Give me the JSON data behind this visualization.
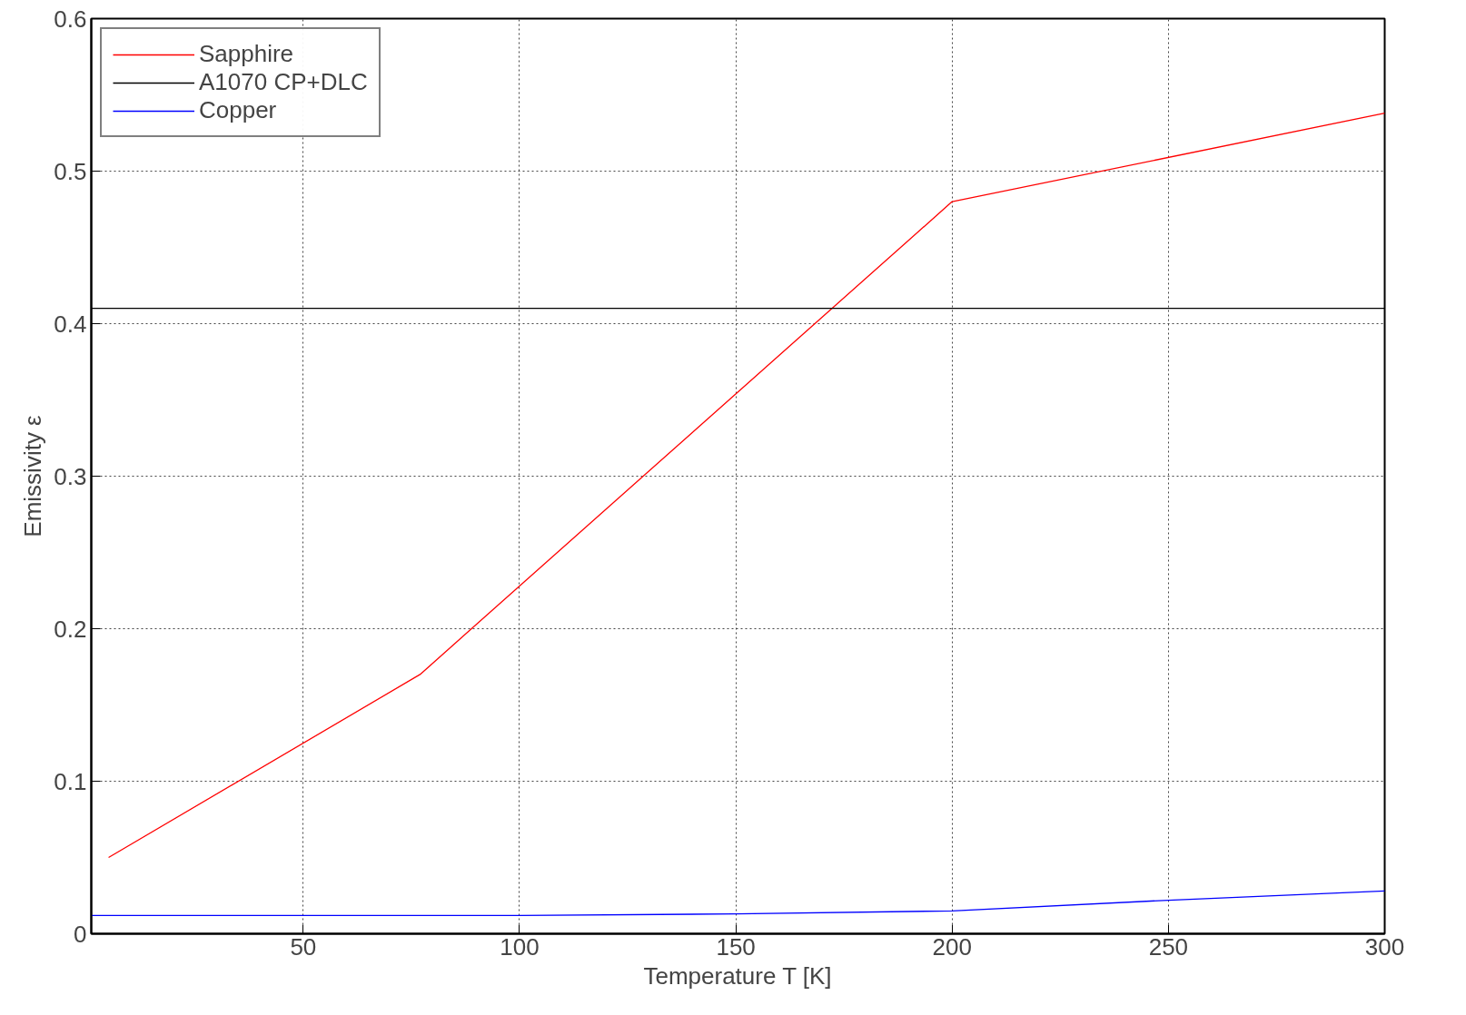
{
  "chart_data": {
    "type": "line",
    "xlabel": "Temperature T [K]",
    "ylabel": "Emissivity ε",
    "xlim": [
      1,
      300
    ],
    "ylim": [
      0,
      0.6
    ],
    "xticks": [
      50,
      100,
      150,
      200,
      250,
      300
    ],
    "yticks": [
      0,
      0.1,
      0.2,
      0.3,
      0.4,
      0.5,
      0.6
    ],
    "grid": true,
    "legend": "top left",
    "line_style": "solid",
    "series": [
      {
        "name": "Sapphire",
        "color": "#ff0000",
        "x": [
          5,
          77,
          200,
          300
        ],
        "values": [
          0.05,
          0.17,
          0.48,
          0.538
        ]
      },
      {
        "name": "A1070 CP+DLC",
        "color": "#000000",
        "x": [
          1,
          300
        ],
        "values": [
          0.41,
          0.41
        ]
      },
      {
        "name": "Copper",
        "color": "#0000ff",
        "x": [
          1,
          100,
          150,
          200,
          250,
          300
        ],
        "values": [
          0.012,
          0.012,
          0.013,
          0.015,
          0.022,
          0.028
        ]
      }
    ]
  }
}
